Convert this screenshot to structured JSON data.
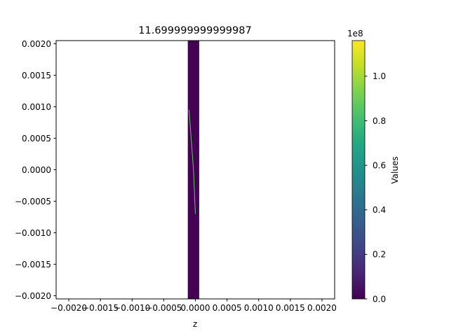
{
  "chart_data": {
    "type": "heatmap",
    "title": "11.699999999999987",
    "xlabel": "z",
    "ylabel": "",
    "xlim": [
      -0.0022,
      0.0022
    ],
    "ylim": [
      -0.00205,
      0.00205
    ],
    "x_ticks": [
      -0.002,
      -0.0015,
      -0.001,
      -0.0005,
      0.0,
      0.0005,
      0.001,
      0.0015,
      0.002
    ],
    "x_tick_labels": [
      "−0.0020",
      "−0.0015",
      "−0.0010",
      "−0.0005",
      "0.0000",
      "0.0005",
      "0.0010",
      "0.0015",
      "0.0020"
    ],
    "y_ticks": [
      0.002,
      0.0015,
      0.001,
      0.0005,
      0.0,
      -0.0005,
      -0.001,
      -0.0015,
      -0.002
    ],
    "y_tick_labels": [
      "0.0020",
      "0.0015",
      "0.0010",
      "0.0005",
      "0.0000",
      "−0.0005",
      "−0.0010",
      "−0.0015",
      "−0.0020"
    ],
    "data_extent": {
      "x": [
        -0.00012,
        6e-05
      ],
      "y": [
        -0.00205,
        0.00205
      ]
    },
    "streak": {
      "description": "thin bright diagonal line inside data region",
      "points": [
        [
          -0.0001,
          0.00095
        ],
        [
          -3e-05,
          0.0
        ],
        [
          0.0,
          -0.0007
        ]
      ],
      "color": "#5ec962"
    },
    "colorbar": {
      "label": "Values",
      "exponent_label": "1e8",
      "vmin": 0.0,
      "vmax": 1.16,
      "ticks": [
        0.0,
        0.2,
        0.4,
        0.6,
        0.8,
        1.0
      ],
      "tick_labels": [
        "0.0",
        "0.2",
        "0.4",
        "0.6",
        "0.8",
        "1.0"
      ],
      "colormap": "viridis"
    },
    "background_value_color": "#440154"
  }
}
